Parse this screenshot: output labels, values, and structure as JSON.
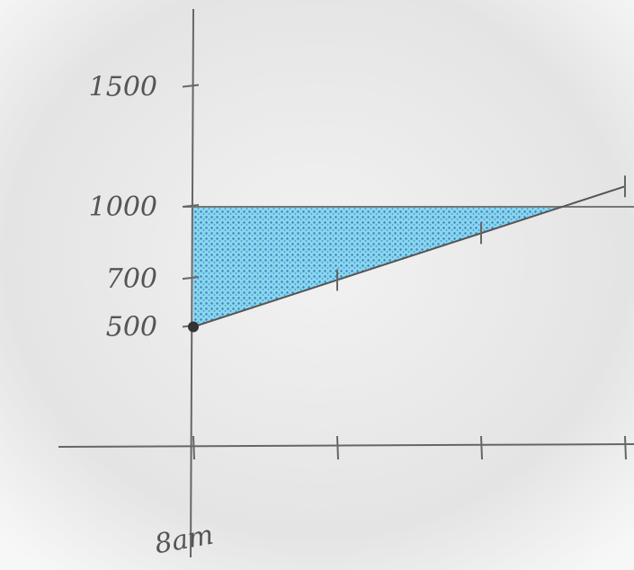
{
  "chart_data": {
    "type": "line",
    "categories": [
      "8am",
      null,
      null,
      null
    ],
    "series": [
      {
        "color": "#555555",
        "values": [
          500,
          695,
          890,
          1085
        ]
      }
    ],
    "threshold": 1000,
    "fill_color": "#2f9fd6",
    "ylim": [
      0,
      1600
    ],
    "yticks": [
      500,
      700,
      1000,
      1500
    ]
  }
}
